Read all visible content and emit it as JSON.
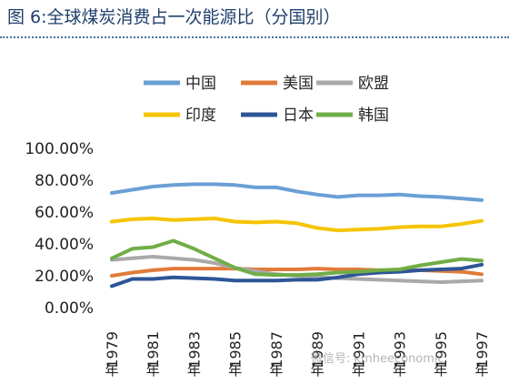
{
  "header": {
    "title": "图 6:全球煤炭消费占一次能源比（分国别）",
    "watermark": "微信号: kmheeconomic"
  },
  "chart_data": {
    "type": "line",
    "title": "",
    "xlabel": "",
    "ylabel": "",
    "ylim": [
      0,
      100
    ],
    "yticks": [
      "0.00%",
      "20.00%",
      "40.00%",
      "60.00%",
      "80.00%",
      "100.00%"
    ],
    "x": [
      1979,
      1980,
      1981,
      1982,
      1983,
      1984,
      1985,
      1986,
      1987,
      1988,
      1989,
      1990,
      1991,
      1992,
      1993,
      1994,
      1995,
      1996,
      1997
    ],
    "xticks": [
      "1979",
      "1981",
      "1983",
      "1985",
      "1987",
      "1989",
      "1991",
      "1993",
      "1995",
      "1997"
    ],
    "xtick_suffix": "年",
    "legend_position": "top",
    "grid": false,
    "series": [
      {
        "name": "中国",
        "color": "#6a9fd4",
        "values": [
          72,
          74,
          76,
          77,
          77.5,
          77.5,
          77,
          75.5,
          75.5,
          73,
          71,
          69.5,
          70.5,
          70.5,
          71,
          70,
          69.5,
          68.5,
          67.5
        ]
      },
      {
        "name": "美国",
        "color": "#e07b39",
        "values": [
          20,
          22,
          23.5,
          24.5,
          24.5,
          24.5,
          24.5,
          24,
          24,
          24,
          24.5,
          24,
          24,
          23.5,
          23,
          23.5,
          23,
          22.5,
          21
        ]
      },
      {
        "name": "欧盟",
        "color": "#a9a9a9",
        "values": [
          30,
          31,
          32,
          31,
          30,
          28,
          25,
          23,
          21,
          20,
          19,
          18.5,
          18,
          17.5,
          17,
          16.5,
          16,
          16.5,
          17
        ]
      },
      {
        "name": "印度",
        "color": "#f5c400",
        "values": [
          54,
          55.5,
          56,
          55,
          55.5,
          56,
          54,
          53.5,
          54,
          53,
          50,
          48.5,
          49,
          49.5,
          50.5,
          51,
          51,
          52.5,
          54.5
        ]
      },
      {
        "name": "日本",
        "color": "#2e5597",
        "values": [
          13.5,
          18,
          18,
          19,
          18.5,
          18,
          17,
          17,
          17,
          17.5,
          17.5,
          19,
          21,
          22,
          22.5,
          23.5,
          24,
          24.5,
          27
        ]
      },
      {
        "name": "韩国",
        "color": "#71ad47",
        "values": [
          31,
          37,
          38,
          42,
          37,
          31,
          25,
          21,
          20.5,
          20.5,
          21,
          22,
          22.5,
          23.5,
          24,
          26.5,
          28.5,
          30.5,
          29.5
        ]
      }
    ]
  }
}
